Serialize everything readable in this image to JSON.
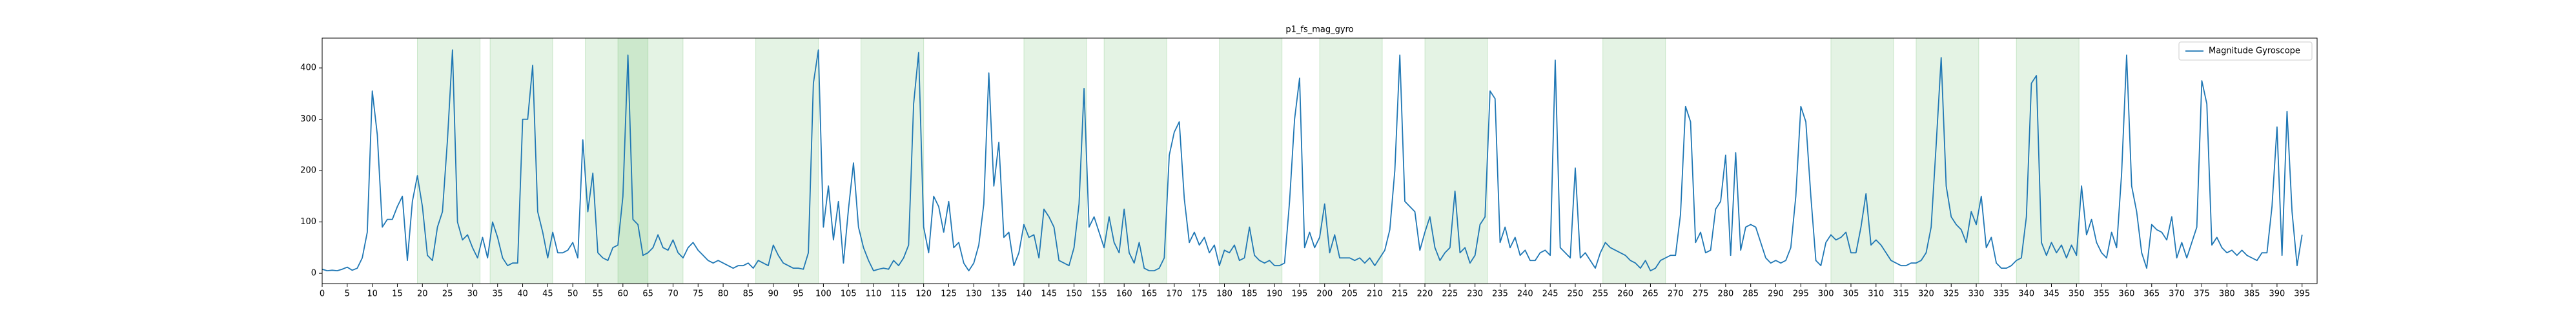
{
  "chart_data": {
    "type": "line",
    "title": "p1_fs_mag_gyro",
    "x": [
      0,
      1,
      2,
      3,
      4,
      5,
      6,
      7,
      8,
      9,
      10,
      11,
      12,
      13,
      14,
      15,
      16,
      17,
      18,
      19,
      20,
      21,
      22,
      23,
      24,
      25,
      26,
      27,
      28,
      29,
      30,
      31,
      32,
      33,
      34,
      35,
      36,
      37,
      38,
      39,
      40,
      41,
      42,
      43,
      44,
      45,
      46,
      47,
      48,
      49,
      50,
      51,
      52,
      53,
      54,
      55,
      56,
      57,
      58,
      59,
      60,
      61,
      62,
      63,
      64,
      65,
      66,
      67,
      68,
      69,
      70,
      71,
      72,
      73,
      74,
      75,
      76,
      77,
      78,
      79,
      80,
      81,
      82,
      83,
      84,
      85,
      86,
      87,
      88,
      89,
      90,
      91,
      92,
      93,
      94,
      95,
      96,
      97,
      98,
      99,
      100,
      101,
      102,
      103,
      104,
      105,
      106,
      107,
      108,
      109,
      110,
      111,
      112,
      113,
      114,
      115,
      116,
      117,
      118,
      119,
      120,
      121,
      122,
      123,
      124,
      125,
      126,
      127,
      128,
      129,
      130,
      131,
      132,
      133,
      134,
      135,
      136,
      137,
      138,
      139,
      140,
      141,
      142,
      143,
      144,
      145,
      146,
      147,
      148,
      149,
      150,
      151,
      152,
      153,
      154,
      155,
      156,
      157,
      158,
      159,
      160,
      161,
      162,
      163,
      164,
      165,
      166,
      167,
      168,
      169,
      170,
      171,
      172,
      173,
      174,
      175,
      176,
      177,
      178,
      179,
      180,
      181,
      182,
      183,
      184,
      185,
      186,
      187,
      188,
      189,
      190,
      191,
      192,
      193,
      194,
      195,
      196,
      197,
      198,
      199,
      200,
      201,
      202,
      203,
      204,
      205,
      206,
      207,
      208,
      209,
      210,
      211,
      212,
      213,
      214,
      215,
      216,
      217,
      218,
      219,
      220,
      221,
      222,
      223,
      224,
      225,
      226,
      227,
      228,
      229,
      230,
      231,
      232,
      233,
      234,
      235,
      236,
      237,
      238,
      239,
      240,
      241,
      242,
      243,
      244,
      245,
      246,
      247,
      248,
      249,
      250,
      251,
      252,
      253,
      254,
      255,
      256,
      257,
      258,
      259,
      260,
      261,
      262,
      263,
      264,
      265,
      266,
      267,
      268,
      269,
      270,
      271,
      272,
      273,
      274,
      275,
      276,
      277,
      278,
      279,
      280,
      281,
      282,
      283,
      284,
      285,
      286,
      287,
      288,
      289,
      290,
      291,
      292,
      293,
      294,
      295,
      296,
      297,
      298,
      299,
      300,
      301,
      302,
      303,
      304,
      305,
      306,
      307,
      308,
      309,
      310,
      311,
      312,
      313,
      314,
      315,
      316,
      317,
      318,
      319,
      320,
      321,
      322,
      323,
      324,
      325,
      326,
      327,
      328,
      329,
      330,
      331,
      332,
      333,
      334,
      335,
      336,
      337,
      338,
      339,
      340,
      341,
      342,
      343,
      344,
      345,
      346,
      347,
      348,
      349,
      350,
      351,
      352,
      353,
      354,
      355,
      356,
      357,
      358,
      359,
      360,
      361,
      362,
      363,
      364,
      365,
      366,
      367,
      368,
      369,
      370,
      371,
      372,
      373,
      374,
      375,
      376,
      377,
      378,
      379,
      380,
      381,
      382,
      383,
      384,
      385,
      386,
      387,
      388,
      389,
      390,
      391,
      392,
      393,
      394,
      395
    ],
    "series": [
      {
        "name": "Magnitude Gyroscope",
        "color": "#1f77b4",
        "values": [
          8,
          5,
          6,
          5,
          8,
          12,
          6,
          10,
          30,
          80,
          355,
          270,
          90,
          105,
          105,
          130,
          150,
          25,
          140,
          190,
          130,
          35,
          25,
          90,
          120,
          260,
          435,
          100,
          65,
          75,
          50,
          30,
          70,
          30,
          100,
          70,
          30,
          15,
          20,
          20,
          300,
          300,
          405,
          120,
          80,
          30,
          80,
          40,
          40,
          45,
          60,
          30,
          260,
          120,
          195,
          40,
          30,
          25,
          50,
          55,
          150,
          425,
          105,
          95,
          35,
          40,
          50,
          75,
          50,
          45,
          65,
          40,
          30,
          50,
          60,
          45,
          35,
          25,
          20,
          25,
          20,
          15,
          10,
          15,
          15,
          20,
          10,
          25,
          20,
          15,
          55,
          35,
          20,
          15,
          10,
          10,
          8,
          40,
          370,
          435,
          90,
          170,
          65,
          140,
          20,
          125,
          215,
          90,
          50,
          25,
          5,
          8,
          10,
          8,
          25,
          15,
          30,
          55,
          330,
          430,
          90,
          40,
          150,
          130,
          80,
          140,
          50,
          60,
          20,
          5,
          20,
          55,
          135,
          390,
          170,
          255,
          70,
          80,
          15,
          40,
          95,
          70,
          75,
          30,
          125,
          110,
          90,
          25,
          20,
          15,
          50,
          135,
          360,
          90,
          110,
          80,
          50,
          110,
          60,
          40,
          125,
          40,
          20,
          60,
          10,
          5,
          5,
          10,
          30,
          230,
          275,
          295,
          145,
          60,
          80,
          55,
          70,
          40,
          55,
          15,
          45,
          40,
          55,
          25,
          30,
          90,
          35,
          25,
          20,
          25,
          15,
          15,
          20,
          140,
          300,
          380,
          50,
          80,
          50,
          70,
          135,
          40,
          75,
          30,
          30,
          30,
          25,
          30,
          20,
          30,
          15,
          30,
          45,
          85,
          200,
          425,
          140,
          130,
          120,
          45,
          80,
          110,
          50,
          25,
          40,
          50,
          160,
          40,
          50,
          20,
          35,
          95,
          110,
          355,
          340,
          60,
          90,
          50,
          70,
          35,
          45,
          25,
          25,
          40,
          45,
          35,
          415,
          50,
          40,
          30,
          205,
          30,
          40,
          25,
          10,
          40,
          60,
          50,
          45,
          40,
          35,
          25,
          20,
          10,
          25,
          5,
          10,
          25,
          30,
          35,
          35,
          115,
          325,
          295,
          60,
          80,
          40,
          45,
          125,
          140,
          230,
          35,
          235,
          45,
          90,
          95,
          90,
          60,
          30,
          20,
          25,
          20,
          25,
          50,
          150,
          325,
          295,
          150,
          25,
          15,
          60,
          75,
          65,
          70,
          80,
          40,
          40,
          90,
          155,
          55,
          65,
          55,
          40,
          25,
          20,
          15,
          15,
          20,
          20,
          25,
          40,
          90,
          250,
          420,
          170,
          110,
          95,
          85,
          60,
          120,
          95,
          150,
          50,
          70,
          20,
          10,
          10,
          15,
          25,
          30,
          110,
          370,
          385,
          60,
          35,
          60,
          40,
          55,
          30,
          55,
          35,
          170,
          75,
          105,
          60,
          40,
          30,
          80,
          50,
          195,
          425,
          170,
          120,
          40,
          10,
          95,
          85,
          80,
          65,
          110,
          30,
          60,
          30,
          60,
          90,
          375,
          330,
          55,
          70,
          50,
          40,
          45,
          35,
          45,
          35,
          30,
          25,
          40,
          40,
          130,
          285,
          35,
          315,
          120,
          15,
          75
        ]
      }
    ],
    "shaded_regions": [
      [
        19,
        31.5
      ],
      [
        33.5,
        46
      ],
      [
        52.5,
        65
      ],
      [
        59,
        72
      ],
      [
        86.5,
        99
      ],
      [
        107.5,
        120
      ],
      [
        140,
        152.5
      ],
      [
        156,
        168.5
      ],
      [
        179,
        191.5
      ],
      [
        199,
        211.5
      ],
      [
        220,
        232.5
      ],
      [
        255.5,
        268
      ],
      [
        301,
        313.5
      ],
      [
        318,
        330.5
      ],
      [
        338,
        350.5
      ]
    ],
    "shade_color": "#2ca02c",
    "xlim": [
      0,
      398
    ],
    "ylim": [
      -20,
      458
    ],
    "xticks": [
      0,
      5,
      10,
      15,
      20,
      25,
      30,
      35,
      40,
      45,
      50,
      55,
      60,
      65,
      70,
      75,
      80,
      85,
      90,
      95,
      100,
      105,
      110,
      115,
      120,
      125,
      130,
      135,
      140,
      145,
      150,
      155,
      160,
      165,
      170,
      175,
      180,
      185,
      190,
      195,
      200,
      205,
      210,
      215,
      220,
      225,
      230,
      235,
      240,
      245,
      250,
      255,
      260,
      265,
      270,
      275,
      280,
      285,
      290,
      295,
      300,
      305,
      310,
      315,
      320,
      325,
      330,
      335,
      340,
      345,
      350,
      355,
      360,
      365,
      370,
      375,
      380,
      385,
      390,
      395
    ],
    "yticks": [
      0,
      100,
      200,
      300,
      400
    ],
    "legend": "upper right",
    "grid": false
  }
}
